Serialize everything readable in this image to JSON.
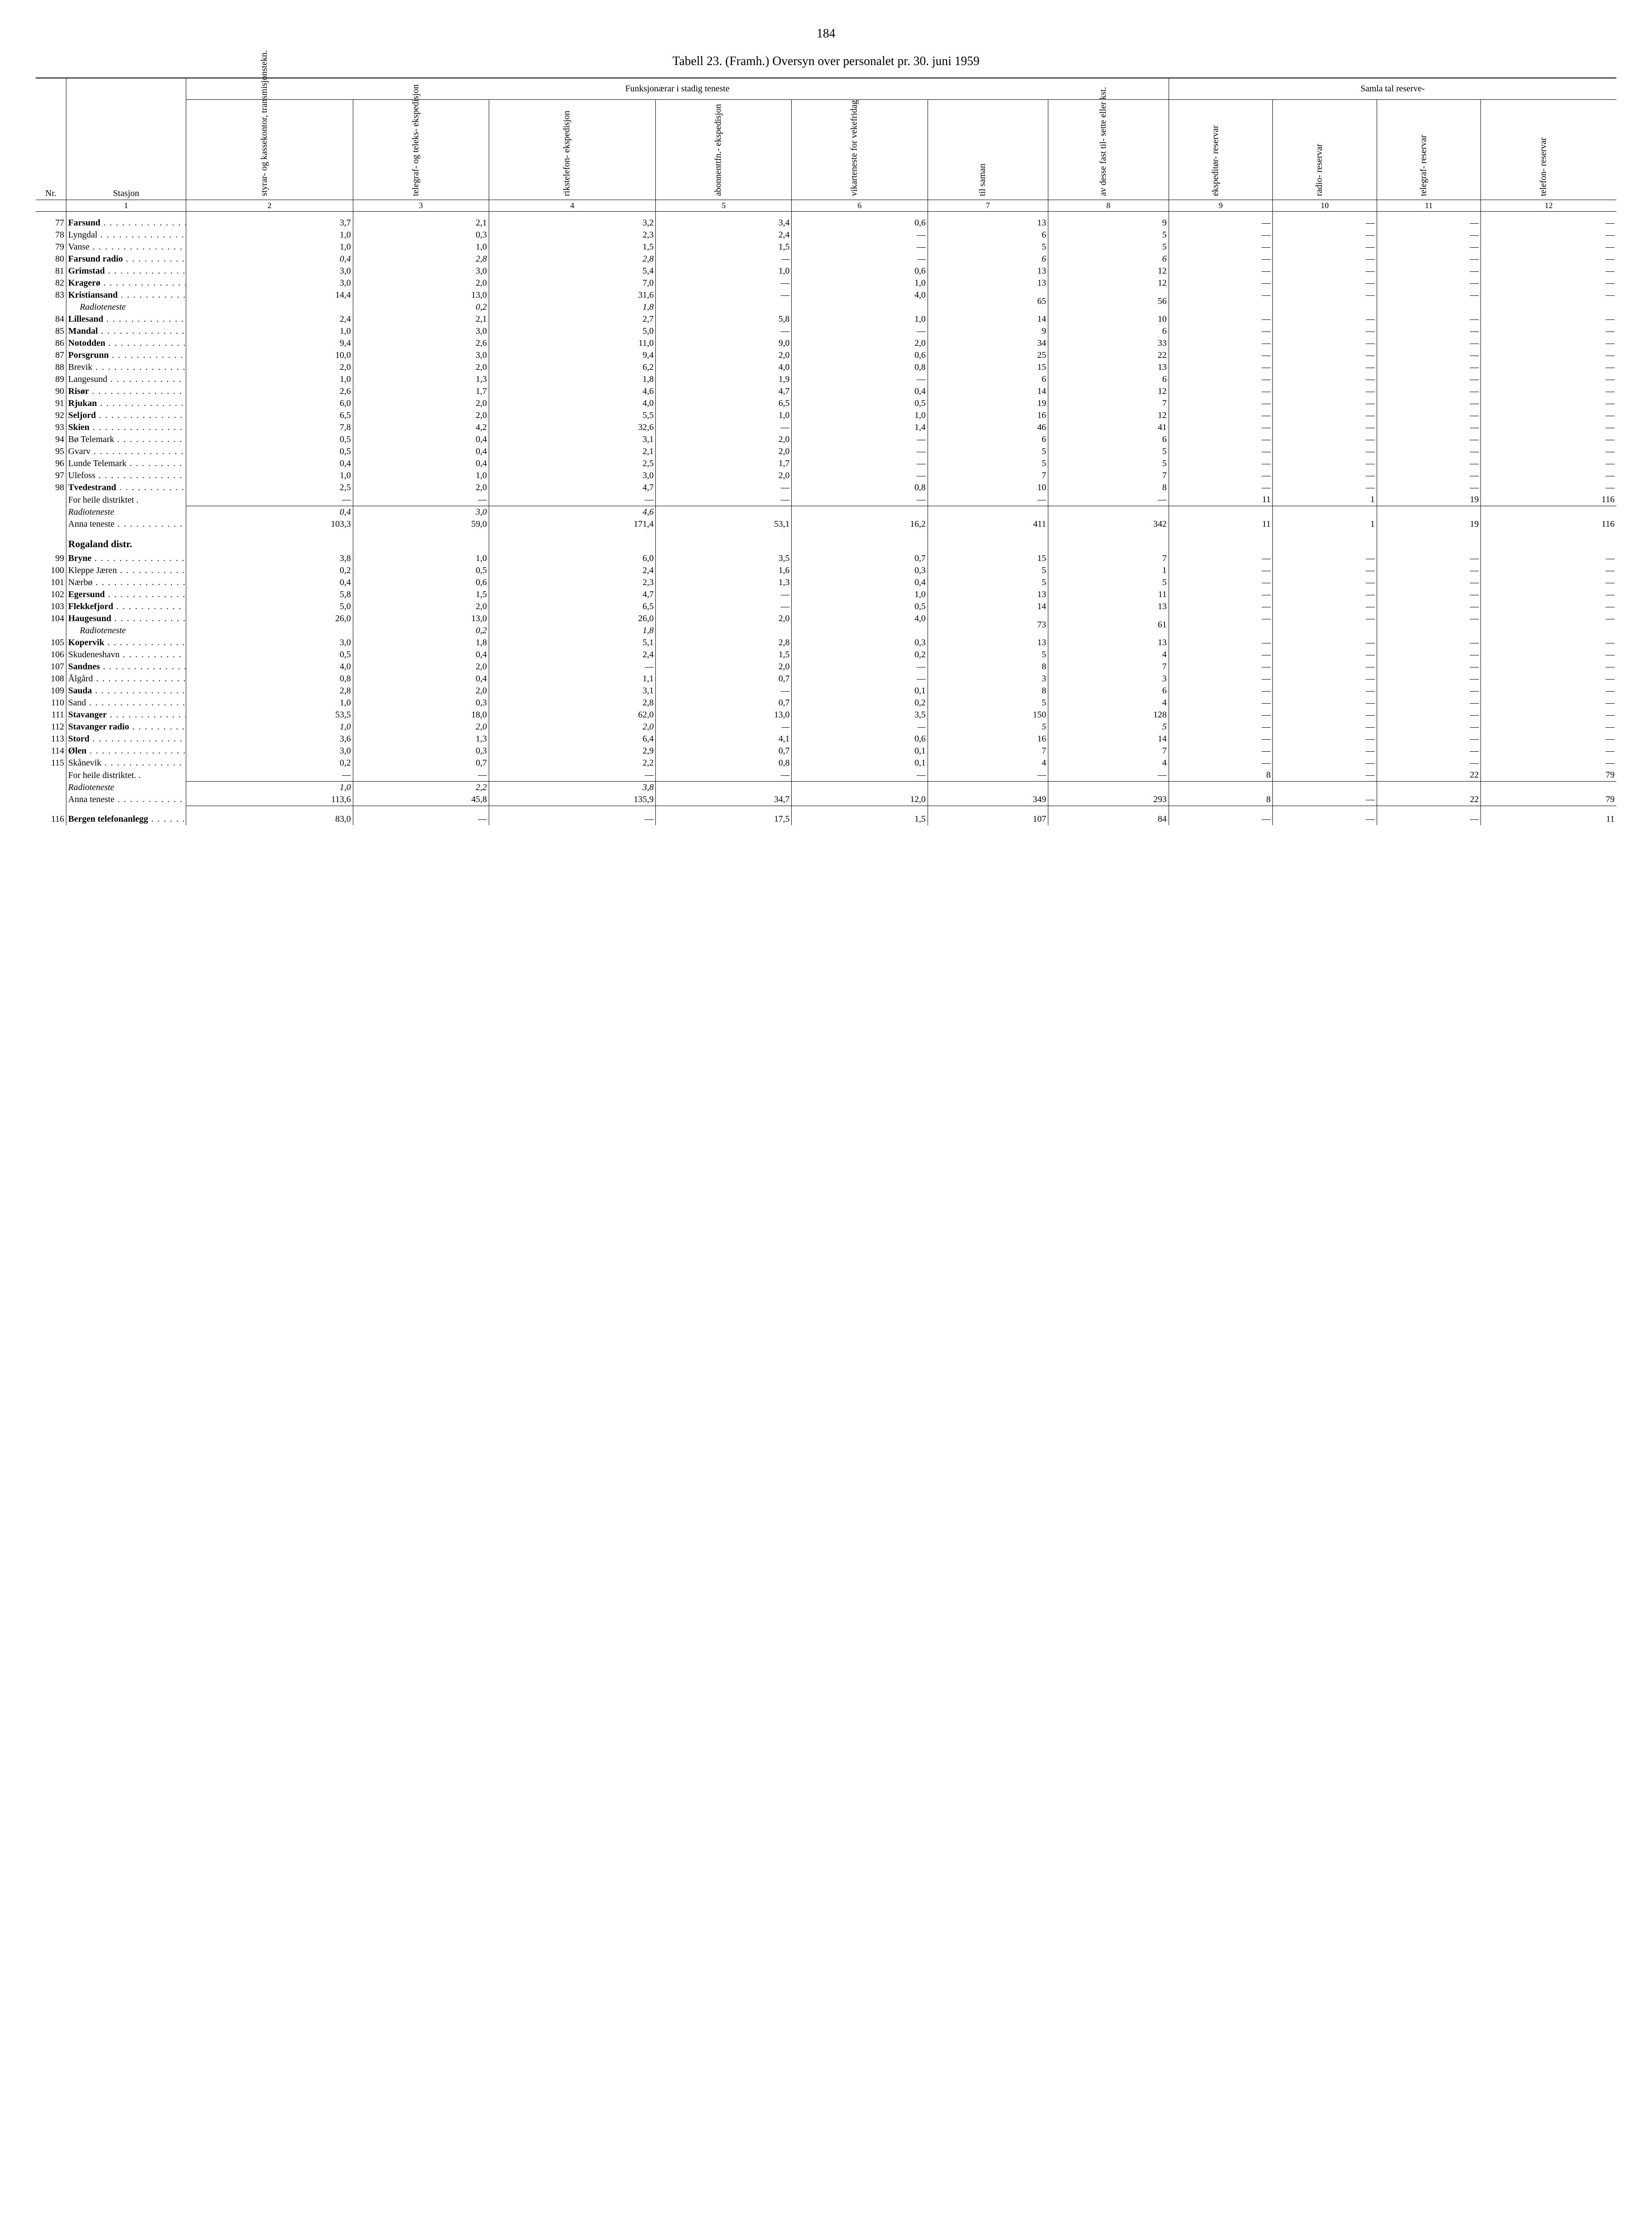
{
  "page_number": "184",
  "title": "Tabell 23. (Framh.)  Oversyn over personalet pr. 30. juni 1959",
  "header_groups": {
    "funksjon": "Funksjonærar i stadig teneste",
    "reserve": "Samla tal reserve-"
  },
  "col_labels": {
    "nr": "Nr.",
    "stasjon": "Stasjon",
    "c2": "styrar- og\nkassekontor,\ntransmisjonstekn.",
    "c3": "telegraf- og teleks-\nekspedisjon",
    "c4": "rikstelefon-\nekspedisjon",
    "c5": "abonnenttfn.-\nekspedisjon",
    "c6": "vikarteneste for\nvekefridag",
    "c7": "til saman",
    "c8": "av desse fast til-\nsette eller kst.",
    "c9": "ekspeditør-\nreservar",
    "c10": "radio-\nreservar",
    "c11": "telegraf-\nreservar",
    "c12": "telefon-\nreservar"
  },
  "col_numbers": [
    "1",
    "2",
    "3",
    "4",
    "5",
    "6",
    "7",
    "8",
    "9",
    "10",
    "11",
    "12"
  ],
  "sections": {
    "rogaland": "Rogaland distr."
  },
  "special_rows": {
    "radioteneste": "Radioteneste",
    "for_heile": "For heile distriktet",
    "anna_teneste": "Anna teneste"
  },
  "rows": [
    {
      "nr": "77",
      "name": "Farsund",
      "bold": true,
      "c2": "3,7",
      "c3": "2,1",
      "c4": "3,2",
      "c5": "3,4",
      "c6": "0,6",
      "c7": "13",
      "c8": "9",
      "c9": "—",
      "c10": "—",
      "c11": "—",
      "c12": "—"
    },
    {
      "nr": "78",
      "name": "Lyngdal",
      "bold": false,
      "c2": "1,0",
      "c3": "0,3",
      "c4": "2,3",
      "c5": "2,4",
      "c6": "—",
      "c7": "6",
      "c8": "5",
      "c9": "—",
      "c10": "—",
      "c11": "—",
      "c12": "—"
    },
    {
      "nr": "79",
      "name": "Vanse",
      "bold": false,
      "c2": "1,0",
      "c3": "1,0",
      "c4": "1,5",
      "c5": "1,5",
      "c6": "—",
      "c7": "5",
      "c8": "5",
      "c9": "—",
      "c10": "—",
      "c11": "—",
      "c12": "—"
    },
    {
      "nr": "80",
      "name": "Farsund radio",
      "bold": true,
      "c2": "0,4",
      "c3": "2,8",
      "c4": "2,8",
      "c5": "—",
      "c6": "—",
      "c7": "6",
      "c8": "6",
      "c9": "—",
      "c10": "—",
      "c11": "—",
      "c12": "—",
      "italic2": true
    },
    {
      "nr": "81",
      "name": "Grimstad",
      "bold": true,
      "c2": "3,0",
      "c3": "3,0",
      "c4": "5,4",
      "c5": "1,0",
      "c6": "0,6",
      "c7": "13",
      "c8": "12",
      "c9": "—",
      "c10": "—",
      "c11": "—",
      "c12": "—"
    },
    {
      "nr": "82",
      "name": "Kragerø",
      "bold": true,
      "c2": "3,0",
      "c3": "2,0",
      "c4": "7,0",
      "c5": "—",
      "c6": "1,0",
      "c7": "13",
      "c8": "12",
      "c9": "—",
      "c10": "—",
      "c11": "—",
      "c12": "—"
    },
    {
      "nr": "83",
      "name": "Kristiansand",
      "bold": true,
      "c2": "14,4",
      "c3": "13,0",
      "c4": "31,6",
      "c5": "—",
      "c6": "4,0",
      "c7": "65",
      "c7rowspan": 2,
      "c8": "56",
      "c8rowspan": 2,
      "c9": "—",
      "c10": "—",
      "c11": "—",
      "c12": "—"
    },
    {
      "nr": "",
      "name": "Radioteneste",
      "bold": false,
      "italic": true,
      "indent": true,
      "c2": "",
      "c3": "0,2",
      "c4": "1,8",
      "c5": "",
      "c6": "",
      "no78": true,
      "c9": "",
      "c10": "",
      "c11": "",
      "c12": ""
    },
    {
      "nr": "84",
      "name": "Lillesand",
      "bold": true,
      "c2": "2,4",
      "c3": "2,1",
      "c4": "2,7",
      "c5": "5,8",
      "c6": "1,0",
      "c7": "14",
      "c8": "10",
      "c9": "—",
      "c10": "—",
      "c11": "—",
      "c12": "—"
    },
    {
      "nr": "85",
      "name": "Mandal",
      "bold": true,
      "c2": "1,0",
      "c3": "3,0",
      "c4": "5,0",
      "c5": "—",
      "c6": "—",
      "c7": "9",
      "c8": "6",
      "c9": "—",
      "c10": "—",
      "c11": "—",
      "c12": "—"
    },
    {
      "nr": "86",
      "name": "Notodden",
      "bold": true,
      "c2": "9,4",
      "c3": "2,6",
      "c4": "11,0",
      "c5": "9,0",
      "c6": "2,0",
      "c7": "34",
      "c8": "33",
      "c9": "—",
      "c10": "—",
      "c11": "—",
      "c12": "—"
    },
    {
      "nr": "87",
      "name": "Porsgrunn",
      "bold": true,
      "c2": "10,0",
      "c3": "3,0",
      "c4": "9,4",
      "c5": "2,0",
      "c6": "0,6",
      "c7": "25",
      "c8": "22",
      "c9": "—",
      "c10": "—",
      "c11": "—",
      "c12": "—"
    },
    {
      "nr": "88",
      "name": "Brevik",
      "bold": false,
      "c2": "2,0",
      "c3": "2,0",
      "c4": "6,2",
      "c5": "4,0",
      "c6": "0,8",
      "c7": "15",
      "c8": "13",
      "c9": "—",
      "c10": "—",
      "c11": "—",
      "c12": "—"
    },
    {
      "nr": "89",
      "name": "Langesund",
      "bold": false,
      "c2": "1,0",
      "c3": "1,3",
      "c4": "1,8",
      "c5": "1,9",
      "c6": "—",
      "c7": "6",
      "c8": "6",
      "c9": "—",
      "c10": "—",
      "c11": "—",
      "c12": "—"
    },
    {
      "nr": "90",
      "name": "Risør",
      "bold": true,
      "c2": "2,6",
      "c3": "1,7",
      "c4": "4,6",
      "c5": "4,7",
      "c6": "0,4",
      "c7": "14",
      "c8": "12",
      "c9": "—",
      "c10": "—",
      "c11": "—",
      "c12": "—"
    },
    {
      "nr": "91",
      "name": "Rjukan",
      "bold": true,
      "c2": "6,0",
      "c3": "2,0",
      "c4": "4,0",
      "c5": "6,5",
      "c6": "0,5",
      "c7": "19",
      "c8": "7",
      "c9": "—",
      "c10": "—",
      "c11": "—",
      "c12": "—"
    },
    {
      "nr": "92",
      "name": "Seljord",
      "bold": true,
      "c2": "6,5",
      "c3": "2,0",
      "c4": "5,5",
      "c5": "1,0",
      "c6": "1,0",
      "c7": "16",
      "c8": "12",
      "c9": "—",
      "c10": "—",
      "c11": "—",
      "c12": "—"
    },
    {
      "nr": "93",
      "name": "Skien",
      "bold": true,
      "c2": "7,8",
      "c3": "4,2",
      "c4": "32,6",
      "c5": "—",
      "c6": "1,4",
      "c7": "46",
      "c8": "41",
      "c9": "—",
      "c10": "—",
      "c11": "—",
      "c12": "—"
    },
    {
      "nr": "94",
      "name": "Bø Telemark",
      "bold": false,
      "c2": "0,5",
      "c3": "0,4",
      "c4": "3,1",
      "c5": "2,0",
      "c6": "—",
      "c7": "6",
      "c8": "6",
      "c9": "—",
      "c10": "—",
      "c11": "—",
      "c12": "—"
    },
    {
      "nr": "95",
      "name": "Gvarv",
      "bold": false,
      "c2": "0,5",
      "c3": "0,4",
      "c4": "2,1",
      "c5": "2,0",
      "c6": "—",
      "c7": "5",
      "c8": "5",
      "c9": "—",
      "c10": "—",
      "c11": "—",
      "c12": "—"
    },
    {
      "nr": "96",
      "name": "Lunde Telemark",
      "bold": false,
      "c2": "0,4",
      "c3": "0,4",
      "c4": "2,5",
      "c5": "1,7",
      "c6": "—",
      "c7": "5",
      "c8": "5",
      "c9": "—",
      "c10": "—",
      "c11": "—",
      "c12": "—"
    },
    {
      "nr": "97",
      "name": "Ulefoss",
      "bold": false,
      "c2": "1,0",
      "c3": "1,0",
      "c4": "3,0",
      "c5": "2,0",
      "c6": "—",
      "c7": "7",
      "c8": "7",
      "c9": "—",
      "c10": "—",
      "c11": "—",
      "c12": "—"
    },
    {
      "nr": "98",
      "name": "Tvedestrand",
      "bold": true,
      "c2": "2,5",
      "c3": "2,0",
      "c4": "4,7",
      "c5": "—",
      "c6": "0,8",
      "c7": "10",
      "c8": "8",
      "c9": "—",
      "c10": "—",
      "c11": "—",
      "c12": "—"
    },
    {
      "nr": "",
      "name": "For heile distriktet  .",
      "bold": false,
      "nodots": true,
      "c2": "—",
      "c3": "—",
      "c4": "—",
      "c5": "—",
      "c6": "—",
      "c7": "—",
      "c8": "—",
      "c9": "11",
      "c10": "1",
      "c11": "19",
      "c12": "116"
    },
    {
      "nr": "",
      "name": "Radioteneste",
      "bold": false,
      "italic": true,
      "nodots": true,
      "topline": true,
      "c2": "0,4",
      "c3": "3,0",
      "c4": "4,6",
      "c5": "",
      "c6": "",
      "c7": "",
      "c8": "",
      "c9": "",
      "c10": "",
      "c11": "",
      "c12": ""
    },
    {
      "nr": "",
      "name": "Anna teneste",
      "bold": false,
      "nodots": false,
      "c2": "103,3",
      "c3": "59,0",
      "c4": "171,4",
      "c5": "53,1",
      "c6": "16,2",
      "c7": "411",
      "c8": "342",
      "c9": "11",
      "c10": "1",
      "c11": "19",
      "c12": "116"
    }
  ],
  "rows2": [
    {
      "nr": "99",
      "name": "Bryne",
      "bold": true,
      "c2": "3,8",
      "c3": "1,0",
      "c4": "6,0",
      "c5": "3,5",
      "c6": "0,7",
      "c7": "15",
      "c8": "7",
      "c9": "—",
      "c10": "—",
      "c11": "—",
      "c12": "—"
    },
    {
      "nr": "100",
      "name": "Kleppe Jæren",
      "bold": false,
      "c2": "0,2",
      "c3": "0,5",
      "c4": "2,4",
      "c5": "1,6",
      "c6": "0,3",
      "c7": "5",
      "c8": "1",
      "c9": "—",
      "c10": "—",
      "c11": "—",
      "c12": "—"
    },
    {
      "nr": "101",
      "name": "Nærbø",
      "bold": false,
      "c2": "0,4",
      "c3": "0,6",
      "c4": "2,3",
      "c5": "1,3",
      "c6": "0,4",
      "c7": "5",
      "c8": "5",
      "c9": "—",
      "c10": "—",
      "c11": "—",
      "c12": "—"
    },
    {
      "nr": "102",
      "name": "Egersund",
      "bold": true,
      "c2": "5,8",
      "c3": "1,5",
      "c4": "4,7",
      "c5": "—",
      "c6": "1,0",
      "c7": "13",
      "c8": "11",
      "c9": "—",
      "c10": "—",
      "c11": "—",
      "c12": "—"
    },
    {
      "nr": "103",
      "name": "Flekkefjord",
      "bold": true,
      "c2": "5,0",
      "c3": "2,0",
      "c4": "6,5",
      "c5": "—",
      "c6": "0,5",
      "c7": "14",
      "c8": "13",
      "c9": "—",
      "c10": "—",
      "c11": "—",
      "c12": "—"
    },
    {
      "nr": "104",
      "name": "Haugesund",
      "bold": true,
      "c2": "26,0",
      "c3": "13,0",
      "c4": "26,0",
      "c5": "2,0",
      "c6": "4,0",
      "c7": "73",
      "c7rowspan": 2,
      "c8": "61",
      "c8rowspan": 2,
      "c9": "—",
      "c10": "—",
      "c11": "—",
      "c12": "—"
    },
    {
      "nr": "",
      "name": "Radioteneste",
      "bold": false,
      "italic": true,
      "indent": true,
      "c2": "",
      "c3": "0,2",
      "c4": "1,8",
      "c5": "",
      "c6": "",
      "no78": true,
      "c9": "",
      "c10": "",
      "c11": "",
      "c12": ""
    },
    {
      "nr": "105",
      "name": "Kopervik",
      "bold": true,
      "c2": "3,0",
      "c3": "1,8",
      "c4": "5,1",
      "c5": "2,8",
      "c6": "0,3",
      "c7": "13",
      "c8": "13",
      "c9": "—",
      "c10": "—",
      "c11": "—",
      "c12": "—"
    },
    {
      "nr": "106",
      "name": "Skudeneshavn",
      "bold": false,
      "c2": "0,5",
      "c3": "0,4",
      "c4": "2,4",
      "c5": "1,5",
      "c6": "0,2",
      "c7": "5",
      "c8": "4",
      "c9": "—",
      "c10": "—",
      "c11": "—",
      "c12": "—"
    },
    {
      "nr": "107",
      "name": "Sandnes",
      "bold": true,
      "c2": "4,0",
      "c3": "2,0",
      "c4": "—",
      "c5": "2,0",
      "c6": "—",
      "c7": "8",
      "c8": "7",
      "c9": "—",
      "c10": "—",
      "c11": "—",
      "c12": "—"
    },
    {
      "nr": "108",
      "name": "Ålgård",
      "bold": false,
      "c2": "0,8",
      "c3": "0,4",
      "c4": "1,1",
      "c5": "0,7",
      "c6": "—",
      "c7": "3",
      "c8": "3",
      "c9": "—",
      "c10": "—",
      "c11": "—",
      "c12": "—"
    },
    {
      "nr": "109",
      "name": "Sauda",
      "bold": true,
      "c2": "2,8",
      "c3": "2,0",
      "c4": "3,1",
      "c5": "—",
      "c6": "0,1",
      "c7": "8",
      "c8": "6",
      "c9": "—",
      "c10": "—",
      "c11": "—",
      "c12": "—"
    },
    {
      "nr": "110",
      "name": "Sand",
      "bold": false,
      "c2": "1,0",
      "c3": "0,3",
      "c4": "2,8",
      "c5": "0,7",
      "c6": "0,2",
      "c7": "5",
      "c8": "4",
      "c9": "—",
      "c10": "—",
      "c11": "—",
      "c12": "—"
    },
    {
      "nr": "111",
      "name": "Stavanger",
      "bold": true,
      "c2": "53,5",
      "c3": "18,0",
      "c4": "62,0",
      "c5": "13,0",
      "c6": "3,5",
      "c7": "150",
      "c8": "128",
      "c9": "—",
      "c10": "—",
      "c11": "—",
      "c12": "—"
    },
    {
      "nr": "112",
      "name": "Stavanger radio",
      "bold": true,
      "c2": "1,0",
      "c3": "2,0",
      "c4": "2,0",
      "c5": "—",
      "c6": "—",
      "c7": "5",
      "c8": "5",
      "c9": "—",
      "c10": "—",
      "c11": "—",
      "c12": "—",
      "italic2": true
    },
    {
      "nr": "113",
      "name": "Stord",
      "bold": true,
      "c2": "3,6",
      "c3": "1,3",
      "c4": "6,4",
      "c5": "4,1",
      "c6": "0,6",
      "c7": "16",
      "c8": "14",
      "c9": "—",
      "c10": "—",
      "c11": "—",
      "c12": "—"
    },
    {
      "nr": "114",
      "name": "Ølen",
      "bold": true,
      "c2": "3,0",
      "c3": "0,3",
      "c4": "2,9",
      "c5": "0,7",
      "c6": "0,1",
      "c7": "7",
      "c8": "7",
      "c9": "—",
      "c10": "—",
      "c11": "—",
      "c12": "—"
    },
    {
      "nr": "115",
      "name": "Skånevik",
      "bold": false,
      "c2": "0,2",
      "c3": "0,7",
      "c4": "2,2",
      "c5": "0,8",
      "c6": "0,1",
      "c7": "4",
      "c8": "4",
      "c9": "—",
      "c10": "—",
      "c11": "—",
      "c12": "—"
    },
    {
      "nr": "",
      "name": "For heile distriktet. .",
      "bold": false,
      "nodots": true,
      "c2": "—",
      "c3": "—",
      "c4": "—",
      "c5": "—",
      "c6": "—",
      "c7": "—",
      "c8": "—",
      "c9": "8",
      "c10": "—",
      "c11": "22",
      "c12": "79"
    },
    {
      "nr": "",
      "name": "Radioteneste",
      "bold": false,
      "italic": true,
      "nodots": true,
      "topline": true,
      "c2": "1,0",
      "c3": "2,2",
      "c4": "3,8",
      "c5": "",
      "c6": "",
      "c7": "",
      "c8": "",
      "c9": "",
      "c10": "",
      "c11": "",
      "c12": ""
    },
    {
      "nr": "",
      "name": "Anna teneste",
      "bold": false,
      "nodots": false,
      "c2": "113,6",
      "c3": "45,8",
      "c4": "135,9",
      "c5": "34,7",
      "c6": "12,0",
      "c7": "349",
      "c8": "293",
      "c9": "8",
      "c10": "—",
      "c11": "22",
      "c12": "79"
    }
  ],
  "rows3": [
    {
      "nr": "116",
      "name": "Bergen telefonanlegg",
      "bold": true,
      "topline": true,
      "c2": "83,0",
      "c3": "—",
      "c4": "—",
      "c5": "17,5",
      "c6": "1,5",
      "c7": "107",
      "c8": "84",
      "c9": "—",
      "c10": "—",
      "c11": "—",
      "c12": "11"
    }
  ]
}
